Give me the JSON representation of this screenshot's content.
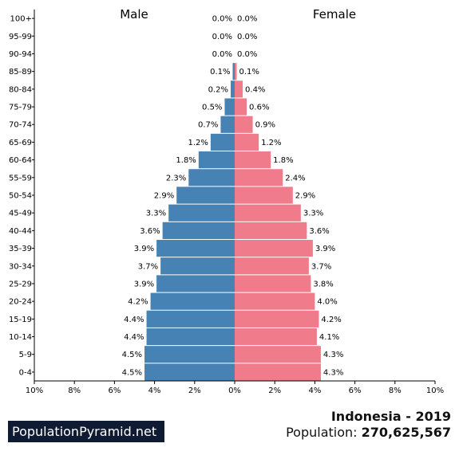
{
  "chart_data": {
    "type": "bar",
    "orientation": "horizontal-pyramid",
    "left_header": "Male",
    "right_header": "Female",
    "categories": [
      "0-4",
      "5-9",
      "10-14",
      "15-19",
      "20-24",
      "25-29",
      "30-34",
      "35-39",
      "40-44",
      "45-49",
      "50-54",
      "55-59",
      "60-64",
      "65-69",
      "70-74",
      "75-79",
      "80-84",
      "85-89",
      "90-94",
      "95-99",
      "100+"
    ],
    "series": [
      {
        "name": "Male",
        "color": "#4682b4",
        "values": [
          4.5,
          4.5,
          4.4,
          4.4,
          4.2,
          3.9,
          3.7,
          3.9,
          3.6,
          3.3,
          2.9,
          2.3,
          1.8,
          1.2,
          0.7,
          0.5,
          0.2,
          0.1,
          0.0,
          0.0,
          0.0
        ],
        "labels": [
          "4.5%",
          "4.5%",
          "4.4%",
          "4.4%",
          "4.2%",
          "3.9%",
          "3.7%",
          "3.9%",
          "3.6%",
          "3.3%",
          "2.9%",
          "2.3%",
          "1.8%",
          "1.2%",
          "0.7%",
          "0.5%",
          "0.2%",
          "0.1%",
          "0.0%",
          "0.0%",
          "0.0%"
        ]
      },
      {
        "name": "Female",
        "color": "#f07b8a",
        "values": [
          4.3,
          4.3,
          4.1,
          4.2,
          4.0,
          3.8,
          3.7,
          3.9,
          3.6,
          3.3,
          2.9,
          2.4,
          1.8,
          1.2,
          0.9,
          0.6,
          0.4,
          0.1,
          0.0,
          0.0,
          0.0
        ],
        "labels": [
          "4.3%",
          "4.3%",
          "4.1%",
          "4.2%",
          "4.0%",
          "3.8%",
          "3.7%",
          "3.9%",
          "3.6%",
          "3.3%",
          "2.9%",
          "2.4%",
          "1.8%",
          "1.2%",
          "0.9%",
          "0.6%",
          "0.4%",
          "0.1%",
          "0.0%",
          "0.0%",
          "0.0%"
        ]
      }
    ],
    "xlim": [
      -10,
      10
    ],
    "xticks": [
      -10,
      -8,
      -6,
      -4,
      -2,
      0,
      2,
      4,
      6,
      8,
      10
    ],
    "xtick_labels": [
      "10%",
      "8%",
      "6%",
      "4%",
      "2%",
      "0%",
      "2%",
      "4%",
      "6%",
      "8%",
      "10%"
    ],
    "grid": false
  },
  "footer": {
    "brand": "PopulationPyramid.net",
    "country_year": "Indonesia - 2019",
    "population_label": "Population: ",
    "population_value": "270,625,567"
  }
}
